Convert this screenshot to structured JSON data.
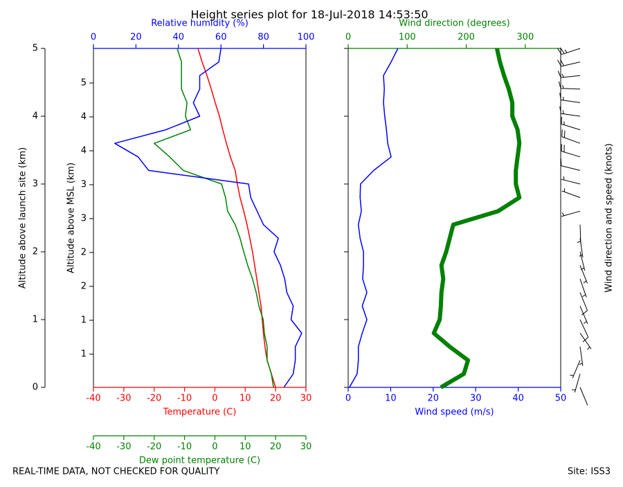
{
  "title": "Height series plot for 18-Jul-2018 14:53:50",
  "footer_left": "REAL-TIME DATA, NOT CHECKED FOR QUALITY",
  "footer_right": "Site: ISS3",
  "chart_data": [
    {
      "type": "profile",
      "altitude": [
        0,
        0.2,
        0.4,
        0.6,
        0.8,
        1.0,
        1.2,
        1.4,
        1.6,
        1.8,
        2.0,
        2.2,
        2.4,
        2.6,
        2.8,
        3.0,
        3.2,
        3.4,
        3.6,
        3.8,
        4.0,
        4.2,
        4.4,
        4.6,
        4.8,
        5.0
      ],
      "yaxes": [
        {
          "label": "Altitude above launch site (km)",
          "position": "outer-left",
          "ylim": [
            0,
            5
          ],
          "yticks": [
            0,
            1,
            2,
            3,
            4,
            5
          ],
          "ticklabels": true
        },
        {
          "label": "Altitude above MSL (km)",
          "position": "left",
          "ylim": [
            0.51,
            5.51
          ],
          "ticklabels": true,
          "yticks": [
            {
              "value": 1.0,
              "label": "1"
            },
            {
              "value": 1.5,
              "label": "1"
            },
            {
              "value": 2.0,
              "label": "2"
            },
            {
              "value": 2.5,
              "label": "2"
            },
            {
              "value": 3.0,
              "label": "3"
            },
            {
              "value": 3.5,
              "label": "3"
            },
            {
              "value": 4.0,
              "label": "4"
            },
            {
              "value": 4.5,
              "label": "4"
            },
            {
              "value": 5.0,
              "label": "5"
            }
          ]
        }
      ],
      "xaxes": [
        {
          "label": "Temperature (C)",
          "position": "bottom",
          "color": "#ff0000",
          "xlim": [
            -40,
            30
          ],
          "xticks": [
            -40,
            -30,
            -20,
            -10,
            0,
            10,
            20,
            30
          ]
        },
        {
          "label": "Relative humidity (%)",
          "position": "top",
          "color": "#0000ff",
          "xlim": [
            0,
            100
          ],
          "xticks": [
            0,
            20,
            40,
            60,
            80,
            100
          ]
        },
        {
          "label": "Dew point temperature (C)",
          "position": "outer-bottom",
          "color": "#008000",
          "xlim": [
            -40,
            30
          ],
          "xticks": [
            -40,
            -30,
            -20,
            -10,
            0,
            10,
            20,
            30
          ]
        }
      ],
      "series": [
        {
          "xaxis": 0,
          "color": "#ff0000",
          "width": 1.5,
          "values": [
            20,
            18.6,
            17.2,
            16.5,
            16,
            15.6,
            15.2,
            14.5,
            13.8,
            13.1,
            12.4,
            11.5,
            10.6,
            9.5,
            8.3,
            7.4,
            6.7,
            5.1,
            3.8,
            2.6,
            1.5,
            0.1,
            -1.2,
            -2.6,
            -4.2,
            -5.6
          ]
        },
        {
          "xaxis": 2,
          "color": "#008000",
          "width": 1.5,
          "values": [
            19.3,
            18.6,
            17.2,
            17.2,
            16.3,
            15.9,
            14.5,
            13.6,
            12.4,
            10.8,
            9.5,
            8.3,
            6.7,
            4.2,
            3.5,
            2.2,
            -10.4,
            -14.9,
            -20,
            -8,
            -9.7,
            -9.2,
            -11,
            -11,
            -11,
            -12.4
          ]
        },
        {
          "xaxis": 1,
          "color": "#0000ff",
          "width": 1.5,
          "values": [
            89.6,
            94,
            95,
            95,
            98,
            93,
            94,
            91,
            90,
            88,
            85,
            87,
            80,
            77,
            74,
            73,
            26,
            21,
            10,
            34,
            50,
            47,
            50,
            50,
            59,
            60
          ]
        }
      ]
    },
    {
      "type": "profile",
      "altitude": [
        0,
        0.2,
        0.4,
        0.6,
        0.8,
        1.0,
        1.2,
        1.4,
        1.6,
        1.8,
        2.0,
        2.2,
        2.4,
        2.6,
        2.8,
        3.0,
        3.2,
        3.4,
        3.6,
        3.8,
        4.0,
        4.2,
        4.4,
        4.6,
        4.8,
        5.0
      ],
      "yaxes": [
        {
          "position": "left",
          "ylim": [
            0,
            5
          ],
          "yticks": [
            0,
            1,
            2,
            3,
            4,
            5
          ],
          "ticklabels": false
        }
      ],
      "xaxes": [
        {
          "label": "Wind speed (m/s)",
          "position": "bottom",
          "color": "#0000ff",
          "xlim": [
            0,
            50
          ],
          "xticks": [
            0,
            10,
            20,
            30,
            40,
            50
          ]
        },
        {
          "label": "Wind direction (degrees)",
          "position": "top",
          "color": "#008000",
          "xlim": [
            0,
            360
          ],
          "xticks": [
            0,
            100,
            200,
            300
          ]
        }
      ],
      "series": [
        {
          "xaxis": 0,
          "color": "#0000ff",
          "width": 1.5,
          "values": [
            0.3,
            2.1,
            2.4,
            2.4,
            3.3,
            4.4,
            3.3,
            4.4,
            3.4,
            3.6,
            3.6,
            2.8,
            2.4,
            3.1,
            2.8,
            2.9,
            6.0,
            10.1,
            9.3,
            9,
            8.6,
            8.3,
            8.5,
            8.3,
            10.1,
            11.7
          ]
        },
        {
          "xaxis": 1,
          "color": "#008000",
          "width": 6,
          "values": [
            157,
            196,
            203,
            172,
            145,
            155,
            157,
            158,
            161,
            158,
            166,
            172,
            178,
            254,
            290,
            284,
            284,
            287,
            290,
            287,
            278,
            278,
            272,
            264,
            257,
            252
          ]
        }
      ],
      "barbs": {
        "label": "Wind direction and speed (knots)",
        "color": "#000000",
        "direction_series": 1,
        "speed_series": 0
      }
    }
  ]
}
